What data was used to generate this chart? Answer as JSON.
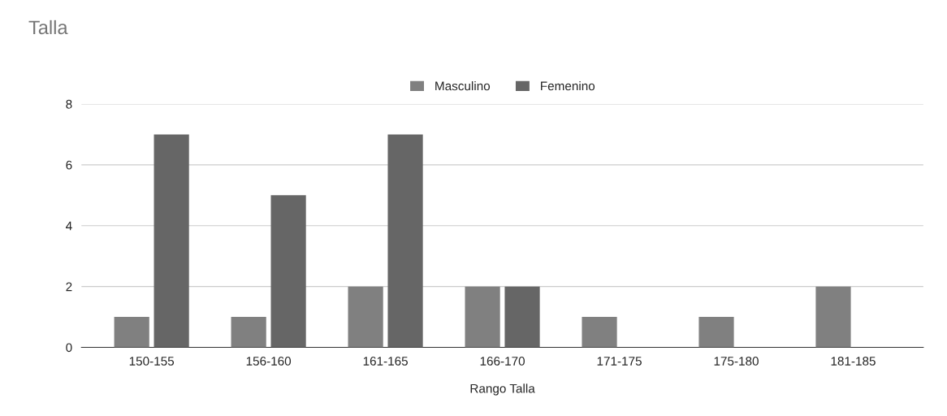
{
  "chart_data": {
    "type": "bar",
    "title": "Talla",
    "xlabel": "Rango Talla",
    "categories": [
      "150-155",
      "156-160",
      "161-165",
      "166-170",
      "171-175",
      "175-180",
      "181-185"
    ],
    "series": [
      {
        "name": "Masculino",
        "color": "#808080",
        "values": [
          1,
          1,
          2,
          2,
          1,
          1,
          2
        ]
      },
      {
        "name": "Femenino",
        "color": "#666666",
        "values": [
          7,
          5,
          7,
          2,
          null,
          null,
          null
        ]
      }
    ],
    "ylim": [
      0,
      8
    ],
    "yticks": [
      0,
      2,
      4,
      6,
      8
    ],
    "grid": "y",
    "legend": "top"
  }
}
